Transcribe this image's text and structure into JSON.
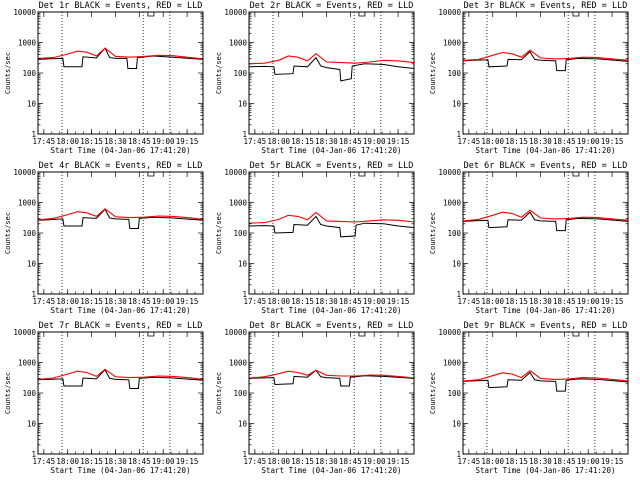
{
  "figure": {
    "xlabel": "Start Time (04-Jan-06 17:41:20)",
    "ylabel": "Counts/sec"
  },
  "colors": {
    "events": "#000000",
    "lld": "#ff0000",
    "frame": "#000000"
  },
  "chart_data": {
    "type": "line",
    "yscale": "log",
    "ylim": [
      1,
      10000
    ],
    "xlim": [
      17.6889,
      19.4167
    ],
    "x_tick_values": [
      17.75,
      18.0,
      18.25,
      18.5,
      18.75,
      19.0,
      19.25
    ],
    "x_tick_labels": [
      "17:45",
      "18:00",
      "18:15",
      "18:30",
      "18:45",
      "19:00",
      "19:15"
    ],
    "y_tick_values": [
      1,
      10,
      100,
      1000,
      10000
    ],
    "y_tick_labels": [
      "1",
      "10",
      "100",
      "1000",
      "10000"
    ],
    "dotted_vlines_hours": [
      17.94,
      18.79,
      19.07
    ],
    "marker_hour": 18.84,
    "panels": [
      {
        "title": "Det 1r BLACK = Events, RED = LLD",
        "series": [
          {
            "name": "Events",
            "color": "#000000",
            "x": [
              17.69,
              17.8,
              17.95,
              17.96,
              18.15,
              18.16,
              18.3,
              18.39,
              18.44,
              18.5,
              18.62,
              18.63,
              18.72,
              18.73,
              18.9,
              19.1,
              19.42
            ],
            "y": [
              280,
              290,
              300,
              160,
              160,
              340,
              310,
              650,
              320,
              300,
              300,
              140,
              140,
              320,
              360,
              330,
              280
            ]
          },
          {
            "name": "LLD",
            "color": "#ff0000",
            "x": [
              17.69,
              17.85,
              18.0,
              18.1,
              18.2,
              18.3,
              18.39,
              18.5,
              18.65,
              18.8,
              18.95,
              19.1,
              19.25,
              19.42
            ],
            "y": [
              300,
              320,
              420,
              520,
              480,
              360,
              650,
              350,
              330,
              350,
              380,
              370,
              330,
              290
            ]
          }
        ]
      },
      {
        "title": "Det 2r BLACK = Events, RED = LLD",
        "series": [
          {
            "name": "Events",
            "color": "#000000",
            "x": [
              17.69,
              17.85,
              17.95,
              17.96,
              18.15,
              18.16,
              18.3,
              18.39,
              18.44,
              18.5,
              18.64,
              18.65,
              18.76,
              18.77,
              18.9,
              19.1,
              19.25,
              19.42
            ],
            "y": [
              160,
              165,
              160,
              90,
              95,
              170,
              160,
              320,
              170,
              150,
              130,
              55,
              65,
              170,
              200,
              190,
              160,
              140
            ]
          },
          {
            "name": "LLD",
            "color": "#ff0000",
            "x": [
              17.69,
              17.85,
              18.0,
              18.1,
              18.2,
              18.3,
              18.39,
              18.5,
              18.65,
              18.8,
              18.95,
              19.1,
              19.25,
              19.42
            ],
            "y": [
              200,
              210,
              260,
              360,
              330,
              250,
              430,
              230,
              220,
              210,
              230,
              260,
              250,
              220
            ]
          }
        ]
      },
      {
        "title": "Det 3r BLACK = Events, RED = LLD",
        "series": [
          {
            "name": "Events",
            "color": "#000000",
            "x": [
              17.69,
              17.8,
              17.95,
              17.96,
              18.15,
              18.16,
              18.3,
              18.39,
              18.44,
              18.5,
              18.66,
              18.67,
              18.76,
              18.77,
              18.9,
              19.1,
              19.42
            ],
            "y": [
              250,
              260,
              270,
              160,
              170,
              280,
              270,
              500,
              280,
              260,
              250,
              120,
              120,
              270,
              300,
              290,
              240
            ]
          },
          {
            "name": "LLD",
            "color": "#ff0000",
            "x": [
              17.69,
              17.85,
              18.0,
              18.1,
              18.2,
              18.3,
              18.39,
              18.5,
              18.65,
              18.8,
              18.95,
              19.1,
              19.25,
              19.42
            ],
            "y": [
              260,
              280,
              380,
              470,
              430,
              330,
              560,
              310,
              290,
              300,
              330,
              320,
              290,
              260
            ]
          }
        ]
      },
      {
        "title": "Det 4r BLACK = Events, RED = LLD",
        "series": [
          {
            "name": "Events",
            "color": "#000000",
            "x": [
              17.69,
              17.8,
              17.95,
              17.96,
              18.15,
              18.16,
              18.3,
              18.39,
              18.44,
              18.5,
              18.64,
              18.65,
              18.74,
              18.75,
              18.9,
              19.1,
              19.42
            ],
            "y": [
              260,
              270,
              290,
              170,
              170,
              320,
              300,
              600,
              310,
              290,
              280,
              140,
              140,
              300,
              330,
              310,
              260
            ]
          },
          {
            "name": "LLD",
            "color": "#ff0000",
            "x": [
              17.69,
              17.85,
              18.0,
              18.1,
              18.2,
              18.3,
              18.39,
              18.5,
              18.65,
              18.8,
              18.95,
              19.1,
              19.25,
              19.42
            ],
            "y": [
              270,
              300,
              400,
              500,
              460,
              350,
              620,
              340,
              320,
              330,
              360,
              350,
              320,
              280
            ]
          }
        ]
      },
      {
        "title": "Det 5r BLACK = Events, RED = LLD",
        "series": [
          {
            "name": "Events",
            "color": "#000000",
            "x": [
              17.69,
              17.85,
              17.95,
              17.96,
              18.15,
              18.16,
              18.3,
              18.39,
              18.44,
              18.5,
              18.64,
              18.65,
              18.8,
              18.81,
              18.9,
              19.1,
              19.25,
              19.42
            ],
            "y": [
              170,
              175,
              170,
              100,
              105,
              190,
              180,
              350,
              190,
              170,
              150,
              75,
              80,
              180,
              210,
              200,
              170,
              150
            ]
          },
          {
            "name": "LLD",
            "color": "#ff0000",
            "x": [
              17.69,
              17.85,
              18.0,
              18.1,
              18.2,
              18.3,
              18.39,
              18.5,
              18.65,
              18.8,
              18.95,
              19.1,
              19.25,
              19.42
            ],
            "y": [
              210,
              220,
              280,
              380,
              350,
              270,
              470,
              250,
              240,
              230,
              250,
              270,
              260,
              230
            ]
          }
        ]
      },
      {
        "title": "Det 6r BLACK = Events, RED = LLD",
        "series": [
          {
            "name": "Events",
            "color": "#000000",
            "x": [
              17.69,
              17.8,
              17.95,
              17.96,
              18.15,
              18.16,
              18.3,
              18.39,
              18.44,
              18.5,
              18.66,
              18.67,
              18.76,
              18.77,
              18.9,
              19.1,
              19.42
            ],
            "y": [
              240,
              250,
              260,
              150,
              160,
              270,
              260,
              480,
              270,
              250,
              240,
              120,
              120,
              270,
              300,
              290,
              240
            ]
          },
          {
            "name": "LLD",
            "color": "#ff0000",
            "x": [
              17.69,
              17.85,
              18.0,
              18.1,
              18.2,
              18.3,
              18.39,
              18.5,
              18.65,
              18.8,
              18.95,
              19.1,
              19.25,
              19.42
            ],
            "y": [
              250,
              280,
              380,
              480,
              440,
              330,
              560,
              310,
              290,
              300,
              330,
              320,
              290,
              260
            ]
          }
        ]
      },
      {
        "title": "Det 7r BLACK = Events, RED = LLD",
        "series": [
          {
            "name": "Events",
            "color": "#000000",
            "x": [
              17.69,
              17.8,
              17.95,
              17.96,
              18.15,
              18.16,
              18.3,
              18.39,
              18.44,
              18.5,
              18.64,
              18.65,
              18.74,
              18.75,
              18.9,
              19.1,
              19.42
            ],
            "y": [
              270,
              280,
              290,
              170,
              170,
              310,
              290,
              580,
              300,
              280,
              270,
              140,
              140,
              300,
              330,
              310,
              260
            ]
          },
          {
            "name": "LLD",
            "color": "#ff0000",
            "x": [
              17.69,
              17.85,
              18.0,
              18.1,
              18.2,
              18.3,
              18.39,
              18.5,
              18.65,
              18.8,
              18.95,
              19.1,
              19.25,
              19.42
            ],
            "y": [
              280,
              310,
              420,
              520,
              470,
              350,
              600,
              340,
              320,
              330,
              360,
              350,
              320,
              280
            ]
          }
        ]
      },
      {
        "title": "Det 8r BLACK = Events, RED = LLD",
        "series": [
          {
            "name": "Events",
            "color": "#000000",
            "x": [
              17.69,
              17.8,
              17.95,
              17.96,
              18.15,
              18.16,
              18.3,
              18.39,
              18.44,
              18.5,
              18.64,
              18.65,
              18.74,
              18.75,
              18.9,
              19.1,
              19.42
            ],
            "y": [
              300,
              310,
              320,
              190,
              200,
              350,
              330,
              560,
              340,
              320,
              300,
              170,
              170,
              330,
              370,
              350,
              300
            ]
          },
          {
            "name": "LLD",
            "color": "#ff0000",
            "x": [
              17.69,
              17.85,
              18.0,
              18.1,
              18.2,
              18.3,
              18.39,
              18.5,
              18.65,
              18.8,
              18.95,
              19.1,
              19.25,
              19.42
            ],
            "y": [
              310,
              340,
              430,
              520,
              470,
              380,
              560,
              380,
              360,
              360,
              390,
              380,
              350,
              310
            ]
          }
        ]
      },
      {
        "title": "Det 9r BLACK = Events, RED = LLD",
        "series": [
          {
            "name": "Events",
            "color": "#000000",
            "x": [
              17.69,
              17.8,
              17.95,
              17.96,
              18.15,
              18.16,
              18.3,
              18.39,
              18.44,
              18.5,
              18.66,
              18.67,
              18.76,
              18.77,
              18.9,
              19.1,
              19.42
            ],
            "y": [
              240,
              250,
              260,
              150,
              160,
              270,
              260,
              470,
              270,
              250,
              240,
              115,
              115,
              260,
              290,
              280,
              230
            ]
          },
          {
            "name": "LLD",
            "color": "#ff0000",
            "x": [
              17.69,
              17.85,
              18.0,
              18.1,
              18.2,
              18.3,
              18.39,
              18.5,
              18.65,
              18.8,
              18.95,
              19.1,
              19.25,
              19.42
            ],
            "y": [
              250,
              270,
              370,
              460,
              420,
              320,
              540,
              300,
              280,
              290,
              320,
              310,
              280,
              250
            ]
          }
        ]
      }
    ]
  }
}
